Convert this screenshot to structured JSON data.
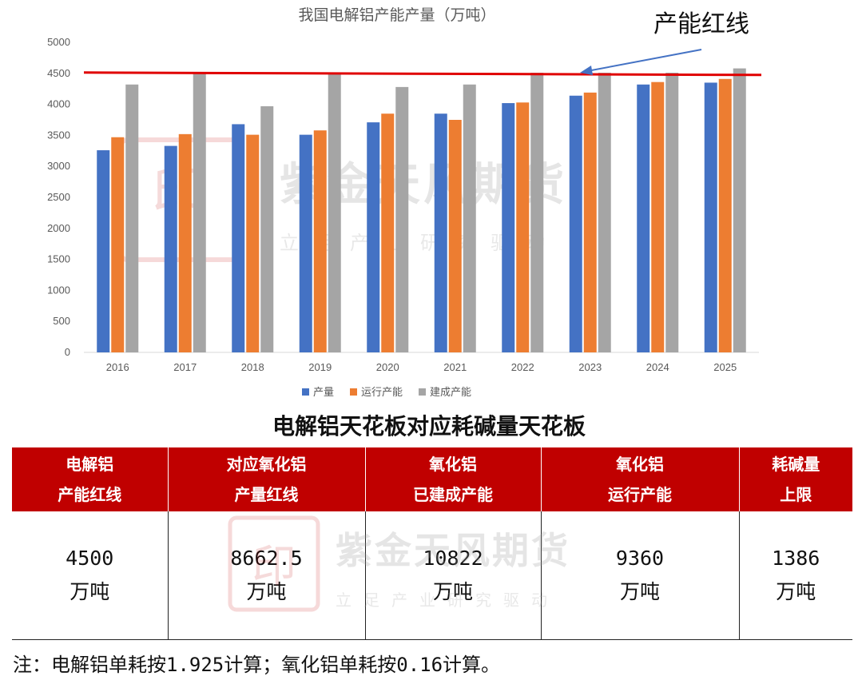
{
  "chart_data": {
    "type": "bar",
    "title": "我国电解铝产能产量（万吨）",
    "categories": [
      "2016",
      "2017",
      "2018",
      "2019",
      "2020",
      "2021",
      "2022",
      "2023",
      "2024",
      "2025"
    ],
    "series": [
      {
        "name": "产量",
        "color": "#4472c4",
        "values": [
          3260,
          3330,
          3680,
          3510,
          3710,
          3850,
          4020,
          4140,
          4320,
          4350
        ]
      },
      {
        "name": "运行产能",
        "color": "#ed7d31",
        "values": [
          3470,
          3520,
          3510,
          3580,
          3850,
          3750,
          4030,
          4190,
          4360,
          4410
        ]
      },
      {
        "name": "建成产能",
        "color": "#a5a5a5",
        "values": [
          4320,
          4510,
          3970,
          4510,
          4280,
          4320,
          4510,
          4510,
          4510,
          4580
        ]
      }
    ],
    "ylim": [
      0,
      5000
    ],
    "yticks": [
      "0",
      "500",
      "1000",
      "1500",
      "2000",
      "2500",
      "3000",
      "3500",
      "4000",
      "4500",
      "5000"
    ],
    "grid": false,
    "legend_position": "bottom",
    "reference_line": {
      "value": 4500,
      "label": "产能红线",
      "color": "#e00000"
    }
  },
  "watermark": {
    "name": "紫金天风期货",
    "slogan": "立足产业研究驱动",
    "seal_color": "#c00000"
  },
  "table": {
    "title": "电解铝天花板对应耗碱量天花板",
    "headers": [
      {
        "l1": "电解铝",
        "l2": "产能红线"
      },
      {
        "l1": "对应氧化铝",
        "l2": "产量红线"
      },
      {
        "l1": "氧化铝",
        "l2": "已建成产能"
      },
      {
        "l1": "氧化铝",
        "l2": "运行产能"
      },
      {
        "l1": "耗碱量",
        "l2": "上限"
      }
    ],
    "values": [
      {
        "value": "4500",
        "unit": "万吨"
      },
      {
        "value": "8662.5",
        "unit": "万吨"
      },
      {
        "value": "10822",
        "unit": "万吨"
      },
      {
        "value": "9360",
        "unit": "万吨"
      },
      {
        "value": "1386",
        "unit": "万吨"
      }
    ],
    "header_color": "#c00000"
  },
  "note": "注：电解铝单耗按1.925计算；氧化铝单耗按0.16计算。"
}
